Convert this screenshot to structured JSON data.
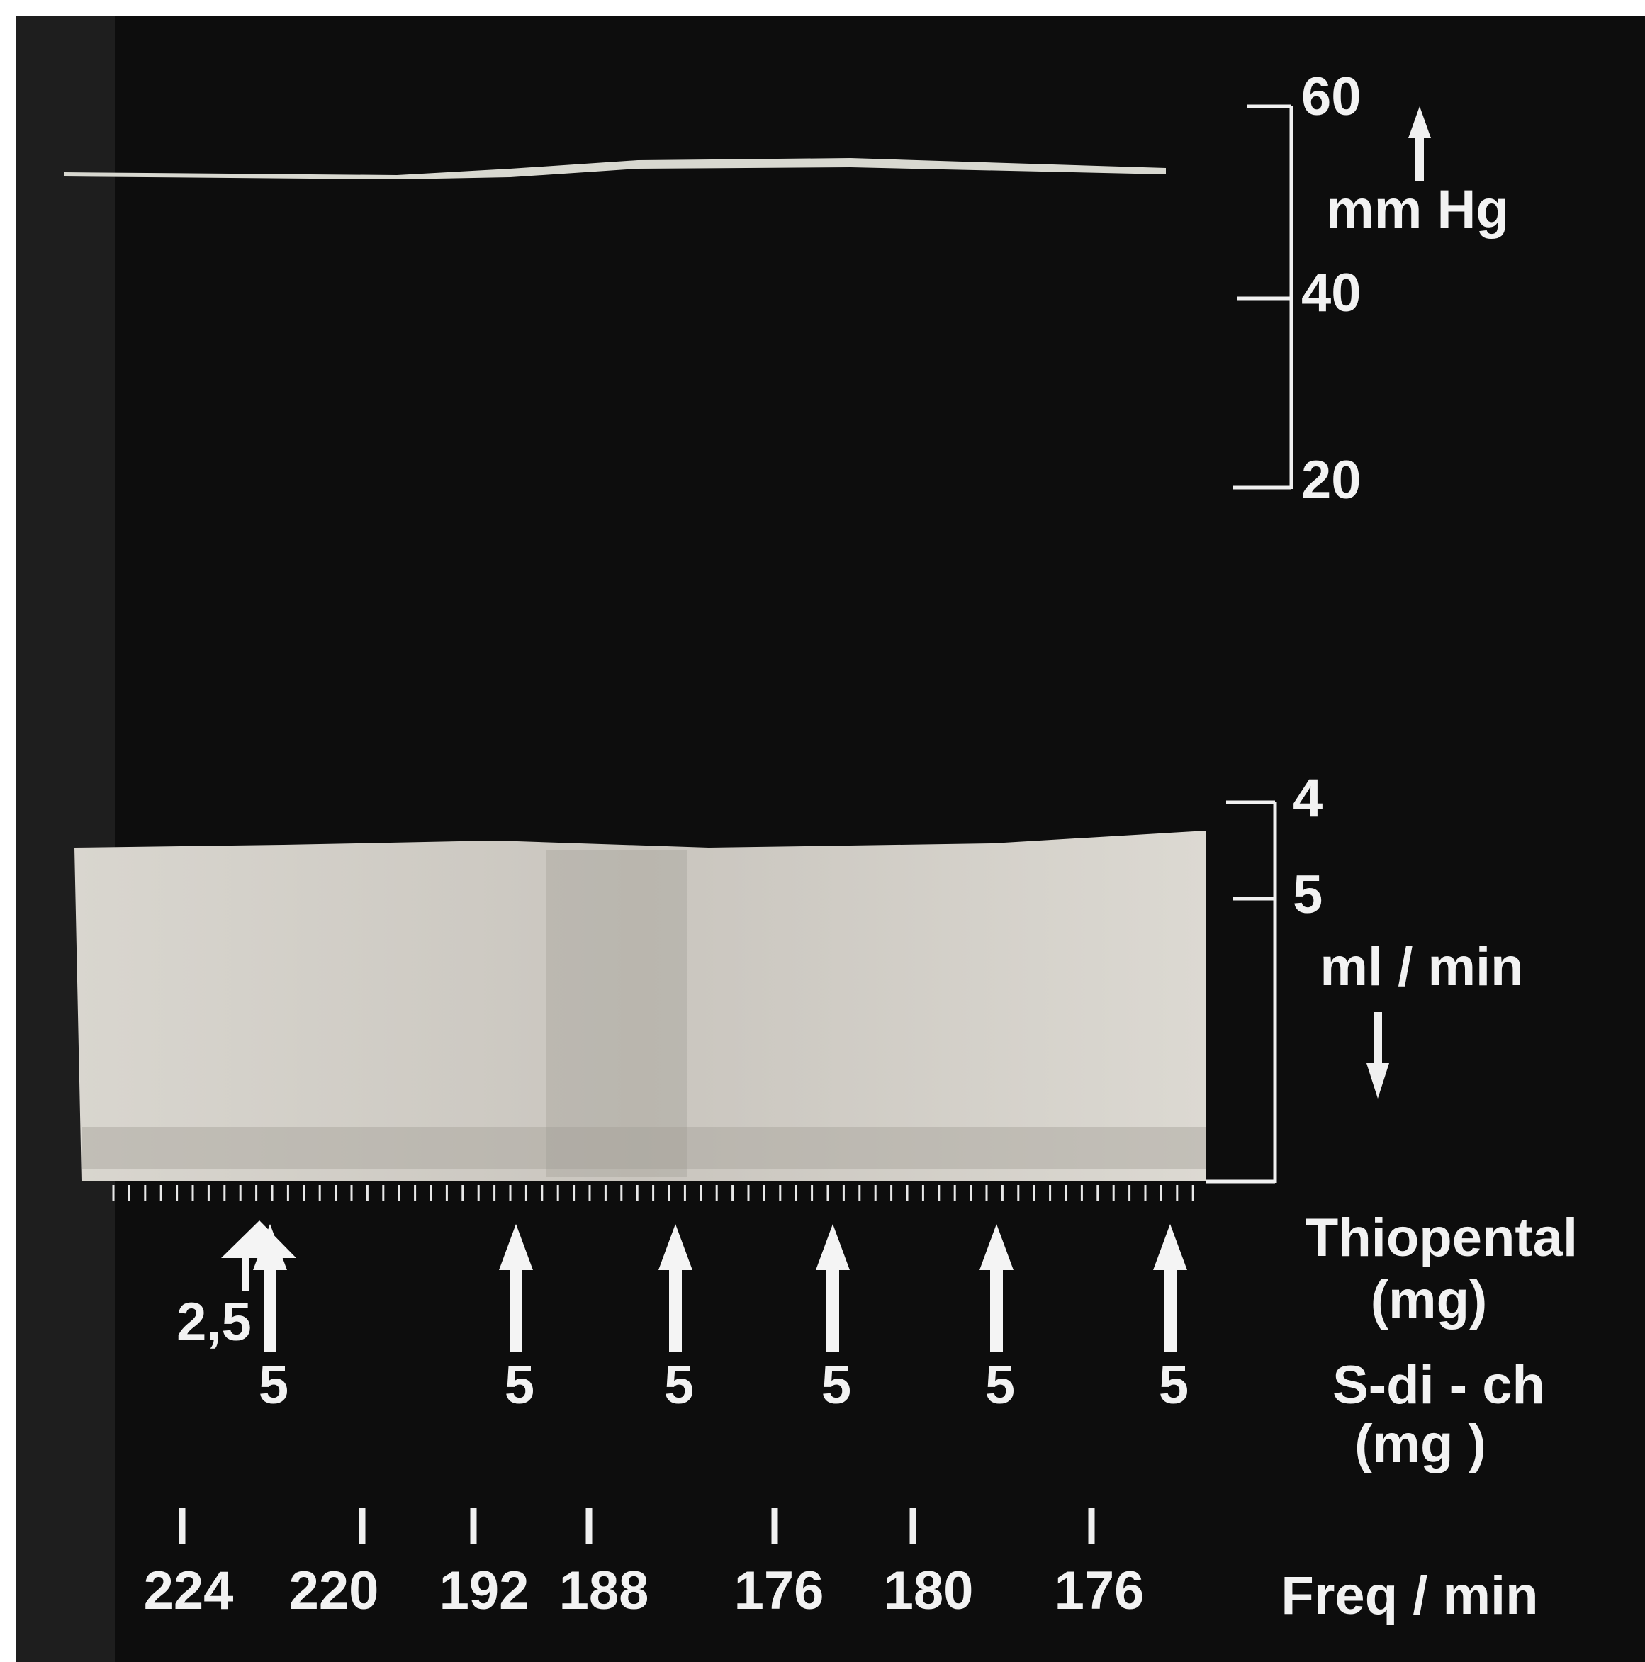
{
  "pressure_scale": {
    "ticks": [
      "60",
      "40",
      "20"
    ],
    "unit": "mm Hg"
  },
  "flow_scale": {
    "ticks": [
      "4",
      "5"
    ],
    "unit": "ml / min"
  },
  "thiopental": {
    "label": "Thiopental",
    "unit": "(mg)",
    "dose": "2,5"
  },
  "succinylcholine": {
    "label": "S-di - ch",
    "unit": "(mg )",
    "doses": [
      "5",
      "5",
      "5",
      "5",
      "5",
      "5"
    ]
  },
  "frequency": {
    "values": [
      "224",
      "220",
      "192",
      "188",
      "176",
      "180",
      "176"
    ],
    "unit": "Freq / min"
  }
}
